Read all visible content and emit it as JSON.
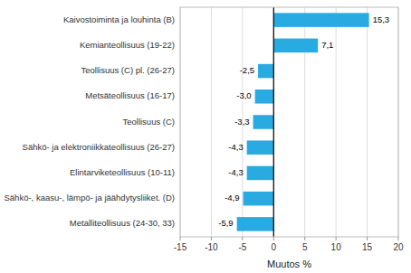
{
  "chart_data": {
    "type": "bar",
    "orientation": "horizontal",
    "xlabel": "Muutos %",
    "categories": [
      "Metalliteollisuus (24-30, 33)",
      "Sähkö-, kaasu-, lämpö- ja jäähdytysliiket. (D)",
      "Elintarviketeollisuus (10-11)",
      "Sähkö- ja elektroniikkateollisuus (26-27)",
      "Teollisuus (C)",
      "Metsäteollisuus (16-17)",
      "Teollisuus (C) pl. (26-27)",
      "Kemianteollisuus (19-22)",
      "Kaivostoiminta  ja louhinta (B)"
    ],
    "values": [
      -5.9,
      -4.9,
      -4.3,
      -4.3,
      -3.3,
      -3.0,
      -2.5,
      7.1,
      15.3
    ],
    "value_labels": [
      "-5,9",
      "-4,9",
      "-4,3",
      "-4,3",
      "-3,3",
      "-3,0",
      "-2,5",
      "7,1",
      "15,3"
    ],
    "data_labels": true,
    "color": "#29ABE2",
    "xlim": [
      -15,
      20
    ],
    "xticks": [
      -15,
      -10,
      -5,
      0,
      5,
      10,
      15,
      20
    ],
    "grid": true
  }
}
